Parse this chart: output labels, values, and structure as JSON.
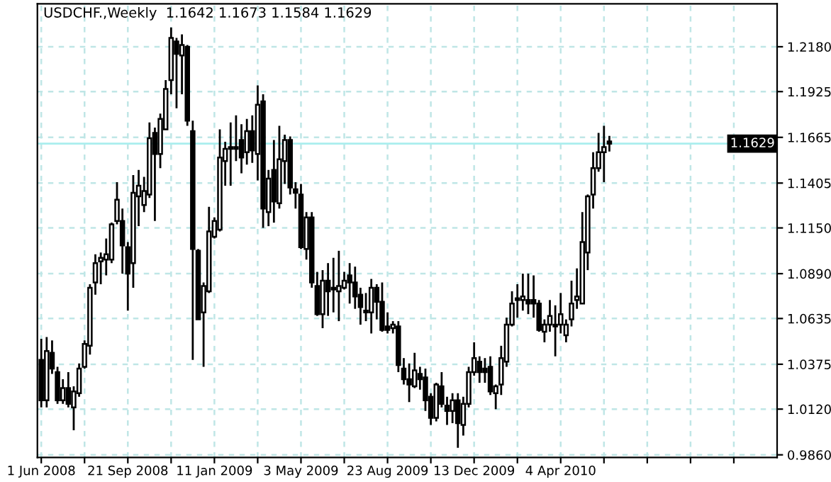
{
  "chart_data": {
    "type": "candlestick",
    "title": "USDCHF.,Weekly  1.1642 1.1673 1.1584 1.1629",
    "x": [
      "2008-06-01",
      "2008-06-08",
      "2008-06-15",
      "2008-06-22",
      "2008-06-29",
      "2008-07-06",
      "2008-07-13",
      "2008-07-20",
      "2008-07-27",
      "2008-08-03",
      "2008-08-10",
      "2008-08-17",
      "2008-08-24",
      "2008-08-31",
      "2008-09-07",
      "2008-09-14",
      "2008-09-21",
      "2008-09-28",
      "2008-10-05",
      "2008-10-12",
      "2008-10-19",
      "2008-10-26",
      "2008-11-02",
      "2008-11-09",
      "2008-11-16",
      "2008-11-23",
      "2008-11-30",
      "2008-12-07",
      "2008-12-14",
      "2008-12-21",
      "2008-12-28",
      "2009-01-04",
      "2009-01-11",
      "2009-01-18",
      "2009-01-25",
      "2009-02-01",
      "2009-02-08",
      "2009-02-15",
      "2009-02-22",
      "2009-03-01",
      "2009-03-08",
      "2009-03-15",
      "2009-03-22",
      "2009-03-29",
      "2009-04-05",
      "2009-04-12",
      "2009-04-19",
      "2009-04-26",
      "2009-05-03",
      "2009-05-10",
      "2009-05-17",
      "2009-05-24",
      "2009-05-31",
      "2009-06-07",
      "2009-06-14",
      "2009-06-21",
      "2009-06-28",
      "2009-07-05",
      "2009-07-12",
      "2009-07-19",
      "2009-07-26",
      "2009-08-02",
      "2009-08-09",
      "2009-08-16",
      "2009-08-23",
      "2009-08-30",
      "2009-09-06",
      "2009-09-13",
      "2009-09-20",
      "2009-09-27",
      "2009-10-04",
      "2009-10-11",
      "2009-10-18",
      "2009-10-25",
      "2009-11-01",
      "2009-11-08",
      "2009-11-15",
      "2009-11-22",
      "2009-11-29",
      "2009-12-06",
      "2009-12-13",
      "2009-12-20",
      "2009-12-27",
      "2010-01-03",
      "2010-01-10",
      "2010-01-17",
      "2010-01-24",
      "2010-01-31",
      "2010-02-07",
      "2010-02-14",
      "2010-02-21",
      "2010-02-28",
      "2010-03-07",
      "2010-03-14",
      "2010-03-21",
      "2010-03-28",
      "2010-04-04",
      "2010-04-11",
      "2010-04-18",
      "2010-04-25",
      "2010-05-02",
      "2010-05-09",
      "2010-05-16",
      "2010-05-23",
      "2010-05-30",
      "2010-06-06"
    ],
    "ohlc": [
      [
        1.04,
        1.052,
        1.013,
        1.017
      ],
      [
        1.017,
        1.053,
        1.013,
        1.045
      ],
      [
        1.044,
        1.051,
        1.032,
        1.035
      ],
      [
        1.033,
        1.036,
        1.015,
        1.017
      ],
      [
        1.017,
        1.029,
        1.015,
        1.024
      ],
      [
        1.024,
        1.033,
        1.013,
        1.015
      ],
      [
        1.013,
        1.025,
        1.0,
        1.022
      ],
      [
        1.021,
        1.038,
        1.019,
        1.035
      ],
      [
        1.036,
        1.051,
        1.035,
        1.049
      ],
      [
        1.048,
        1.083,
        1.043,
        1.081
      ],
      [
        1.084,
        1.1,
        1.077,
        1.095
      ],
      [
        1.096,
        1.101,
        1.083,
        1.098
      ],
      [
        1.097,
        1.109,
        1.088,
        1.1
      ],
      [
        1.097,
        1.118,
        1.095,
        1.117
      ],
      [
        1.119,
        1.141,
        1.117,
        1.131
      ],
      [
        1.119,
        1.126,
        1.089,
        1.105
      ],
      [
        1.104,
        1.107,
        1.068,
        1.089
      ],
      [
        1.095,
        1.145,
        1.081,
        1.135
      ],
      [
        1.133,
        1.148,
        1.116,
        1.139
      ],
      [
        1.128,
        1.144,
        1.124,
        1.136
      ],
      [
        1.134,
        1.175,
        1.132,
        1.166
      ],
      [
        1.169,
        1.172,
        1.119,
        1.157
      ],
      [
        1.157,
        1.18,
        1.149,
        1.177
      ],
      [
        1.171,
        1.199,
        1.171,
        1.194
      ],
      [
        1.199,
        1.229,
        1.191,
        1.223
      ],
      [
        1.221,
        1.223,
        1.183,
        1.214
      ],
      [
        1.213,
        1.225,
        1.191,
        1.219
      ],
      [
        1.218,
        1.219,
        1.173,
        1.176
      ],
      [
        1.17,
        1.176,
        1.04,
        1.103
      ],
      [
        1.102,
        1.103,
        1.063,
        1.063
      ],
      [
        1.067,
        1.084,
        1.036,
        1.082
      ],
      [
        1.079,
        1.127,
        1.078,
        1.113
      ],
      [
        1.11,
        1.121,
        1.109,
        1.119
      ],
      [
        1.114,
        1.171,
        1.113,
        1.155
      ],
      [
        1.153,
        1.164,
        1.139,
        1.16
      ],
      [
        1.16,
        1.175,
        1.139,
        1.161
      ],
      [
        1.16,
        1.179,
        1.153,
        1.161
      ],
      [
        1.165,
        1.174,
        1.146,
        1.155
      ],
      [
        1.158,
        1.177,
        1.151,
        1.17
      ],
      [
        1.17,
        1.179,
        1.152,
        1.159
      ],
      [
        1.157,
        1.196,
        1.142,
        1.185
      ],
      [
        1.187,
        1.191,
        1.115,
        1.126
      ],
      [
        1.124,
        1.148,
        1.116,
        1.143
      ],
      [
        1.148,
        1.165,
        1.118,
        1.13
      ],
      [
        1.129,
        1.173,
        1.126,
        1.154
      ],
      [
        1.153,
        1.168,
        1.14,
        1.165
      ],
      [
        1.165,
        1.167,
        1.134,
        1.138
      ],
      [
        1.137,
        1.141,
        1.126,
        1.135
      ],
      [
        1.134,
        1.14,
        1.103,
        1.104
      ],
      [
        1.103,
        1.124,
        1.097,
        1.121
      ],
      [
        1.121,
        1.124,
        1.081,
        1.084
      ],
      [
        1.082,
        1.09,
        1.065,
        1.066
      ],
      [
        1.066,
        1.091,
        1.058,
        1.085
      ],
      [
        1.085,
        1.095,
        1.065,
        1.079
      ],
      [
        1.081,
        1.098,
        1.067,
        1.08
      ],
      [
        1.079,
        1.102,
        1.062,
        1.082
      ],
      [
        1.081,
        1.09,
        1.08,
        1.085
      ],
      [
        1.088,
        1.095,
        1.072,
        1.084
      ],
      [
        1.084,
        1.093,
        1.069,
        1.076
      ],
      [
        1.077,
        1.081,
        1.06,
        1.07
      ],
      [
        1.068,
        1.078,
        1.062,
        1.067
      ],
      [
        1.067,
        1.086,
        1.055,
        1.081
      ],
      [
        1.081,
        1.083,
        1.063,
        1.073
      ],
      [
        1.073,
        1.084,
        1.056,
        1.057
      ],
      [
        1.059,
        1.067,
        1.055,
        1.057
      ],
      [
        1.058,
        1.062,
        1.055,
        1.06
      ],
      [
        1.059,
        1.062,
        1.033,
        1.037
      ],
      [
        1.035,
        1.041,
        1.026,
        1.029
      ],
      [
        1.029,
        1.038,
        1.016,
        1.026
      ],
      [
        1.025,
        1.044,
        1.024,
        1.034
      ],
      [
        1.032,
        1.036,
        1.023,
        1.029
      ],
      [
        1.03,
        1.035,
        1.011,
        1.017
      ],
      [
        1.019,
        1.021,
        1.003,
        1.007
      ],
      [
        1.007,
        1.027,
        1.005,
        1.026
      ],
      [
        1.025,
        1.033,
        1.013,
        1.015
      ],
      [
        1.014,
        1.019,
        1.003,
        1.011
      ],
      [
        1.011,
        1.021,
        1.004,
        1.017
      ],
      [
        1.017,
        1.021,
        0.99,
        1.004
      ],
      [
        1.003,
        1.019,
        0.997,
        1.015
      ],
      [
        1.015,
        1.036,
        1.013,
        1.033
      ],
      [
        1.033,
        1.05,
        1.031,
        1.041
      ],
      [
        1.039,
        1.042,
        1.027,
        1.033
      ],
      [
        1.035,
        1.041,
        1.027,
        1.033
      ],
      [
        1.036,
        1.042,
        1.02,
        1.022
      ],
      [
        1.021,
        1.026,
        1.012,
        1.025
      ],
      [
        1.026,
        1.048,
        1.02,
        1.041
      ],
      [
        1.039,
        1.064,
        1.036,
        1.06
      ],
      [
        1.06,
        1.079,
        1.059,
        1.072
      ],
      [
        1.074,
        1.083,
        1.064,
        1.075
      ],
      [
        1.074,
        1.089,
        1.068,
        1.076
      ],
      [
        1.074,
        1.089,
        1.066,
        1.072
      ],
      [
        1.074,
        1.088,
        1.064,
        1.072
      ],
      [
        1.072,
        1.074,
        1.056,
        1.057
      ],
      [
        1.056,
        1.063,
        1.05,
        1.06
      ],
      [
        1.06,
        1.074,
        1.056,
        1.065
      ],
      [
        1.06,
        1.071,
        1.042,
        1.059
      ],
      [
        1.06,
        1.078,
        1.055,
        1.066
      ],
      [
        1.054,
        1.063,
        1.05,
        1.06
      ],
      [
        1.063,
        1.085,
        1.059,
        1.072
      ],
      [
        1.074,
        1.092,
        1.069,
        1.076
      ],
      [
        1.072,
        1.124,
        1.072,
        1.107
      ],
      [
        1.101,
        1.134,
        1.091,
        1.133
      ],
      [
        1.134,
        1.158,
        1.126,
        1.149
      ],
      [
        1.149,
        1.169,
        1.147,
        1.158
      ],
      [
        1.158,
        1.173,
        1.141,
        1.161
      ],
      [
        1.1642,
        1.1673,
        1.1584,
        1.1629
      ]
    ],
    "xlim": [
      "2008-05-27",
      "2011-01-09"
    ],
    "xticks": [
      {
        "value": "2008-06-01",
        "label": "1 Jun 2008"
      },
      {
        "value": "2008-07-27",
        "label": null
      },
      {
        "value": "2008-09-21",
        "label": "21 Sep 2008"
      },
      {
        "value": "2008-11-16",
        "label": null
      },
      {
        "value": "2009-01-11",
        "label": "11 Jan 2009"
      },
      {
        "value": "2009-03-08",
        "label": null
      },
      {
        "value": "2009-05-03",
        "label": "3 May 2009"
      },
      {
        "value": "2009-06-28",
        "label": null
      },
      {
        "value": "2009-08-23",
        "label": "23 Aug 2009"
      },
      {
        "value": "2009-10-18",
        "label": null
      },
      {
        "value": "2009-12-13",
        "label": "13 Dec 2009"
      },
      {
        "value": "2010-02-07",
        "label": null
      },
      {
        "value": "2010-04-04",
        "label": "4 Apr 2010"
      },
      {
        "value": "2010-05-30",
        "label": null
      },
      {
        "value": "2010-07-25",
        "label": null
      },
      {
        "value": "2010-09-19",
        "label": null
      },
      {
        "value": "2010-11-14",
        "label": null
      }
    ],
    "ylim": [
      0.9845,
      1.2424
    ],
    "yticks": [
      {
        "value": 1.218,
        "label": "1.2180"
      },
      1.1925,
      1.1665,
      1.1405,
      {
        "value": 1.115,
        "label": "1.1150"
      },
      {
        "value": 1.089,
        "label": "1.0890"
      },
      1.0635,
      1.0375,
      {
        "value": 1.012,
        "label": "1.0120"
      },
      {
        "value": 0.986,
        "label": "0.9860"
      }
    ],
    "ref_lines": [
      {
        "axis": "y",
        "value": 1.1629,
        "label": "1.1629",
        "color": "#aaeeee"
      }
    ],
    "grid": true,
    "line_style": "dashed"
  }
}
